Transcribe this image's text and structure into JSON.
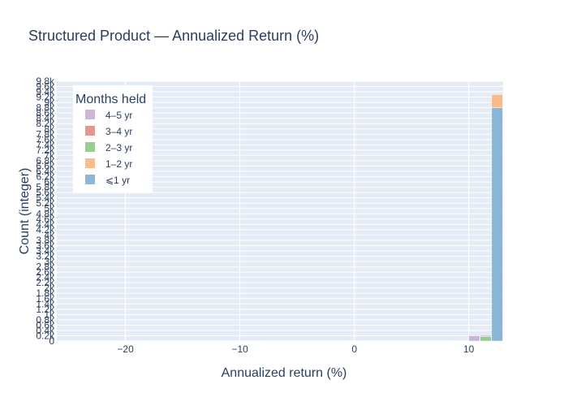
{
  "chart_data": {
    "type": "bar",
    "title": "Structured Product — Annualized Return (%)",
    "xlabel": "Annualized return (%)",
    "ylabel": "Count (integer)",
    "barmode": "stack",
    "xlim": [
      -26,
      13
    ],
    "ylim": [
      0,
      9800
    ],
    "x_ticks": [
      -20,
      -10,
      0,
      10
    ],
    "x_tick_labels": [
      "−20",
      "−10",
      "0",
      "10"
    ],
    "y_tick_labels": [
      "0",
      "0.2k",
      "0.4k",
      "0.6k",
      "0.8k",
      "1k",
      "1.2k",
      "1.4k",
      "1.6k",
      "1.8k",
      "2k",
      "2.2k",
      "2.4k",
      "2.6k",
      "2.8k",
      "3k",
      "3.2k",
      "3.4k",
      "3.6k",
      "3.8k",
      "4k",
      "4.2k",
      "4.4k",
      "4.6k",
      "4.8k",
      "5k",
      "5.2k",
      "5.4k",
      "5.6k",
      "5.8k",
      "6k",
      "6.2k",
      "6.4k",
      "6.6k",
      "6.8k",
      "7k",
      "7.2k",
      "7.4k",
      "7.6k",
      "7.8k",
      "8k",
      "8.2k",
      "8.4k",
      "8.6k",
      "8.8k",
      "9k",
      "9.2k",
      "9.4k",
      "9.6k",
      "9.8k"
    ],
    "grid": true,
    "legend": {
      "title": "Months held",
      "position": "top-left",
      "entries": [
        "4–5 yr",
        "3–4 yr",
        "2–3 yr",
        "1–2 yr",
        "⩽1 yr"
      ]
    },
    "bins": [
      {
        "x0": 10,
        "x1": 11
      },
      {
        "x0": 11,
        "x1": 12
      },
      {
        "x0": 12,
        "x1": 13
      }
    ],
    "series": [
      {
        "name": "⩽1 yr",
        "color": "#7fafd1",
        "values": [
          0,
          0,
          8800
        ]
      },
      {
        "name": "1–2 yr",
        "color": "#f8b67f",
        "values": [
          0,
          0,
          500
        ]
      },
      {
        "name": "2–3 yr",
        "color": "#8cc98c",
        "values": [
          0,
          170,
          0
        ]
      },
      {
        "name": "3–4 yr",
        "color": "#e28c83",
        "values": [
          0,
          40,
          0
        ]
      },
      {
        "name": "4–5 yr",
        "color": "#c8aed8",
        "values": [
          200,
          0,
          0
        ]
      }
    ]
  }
}
